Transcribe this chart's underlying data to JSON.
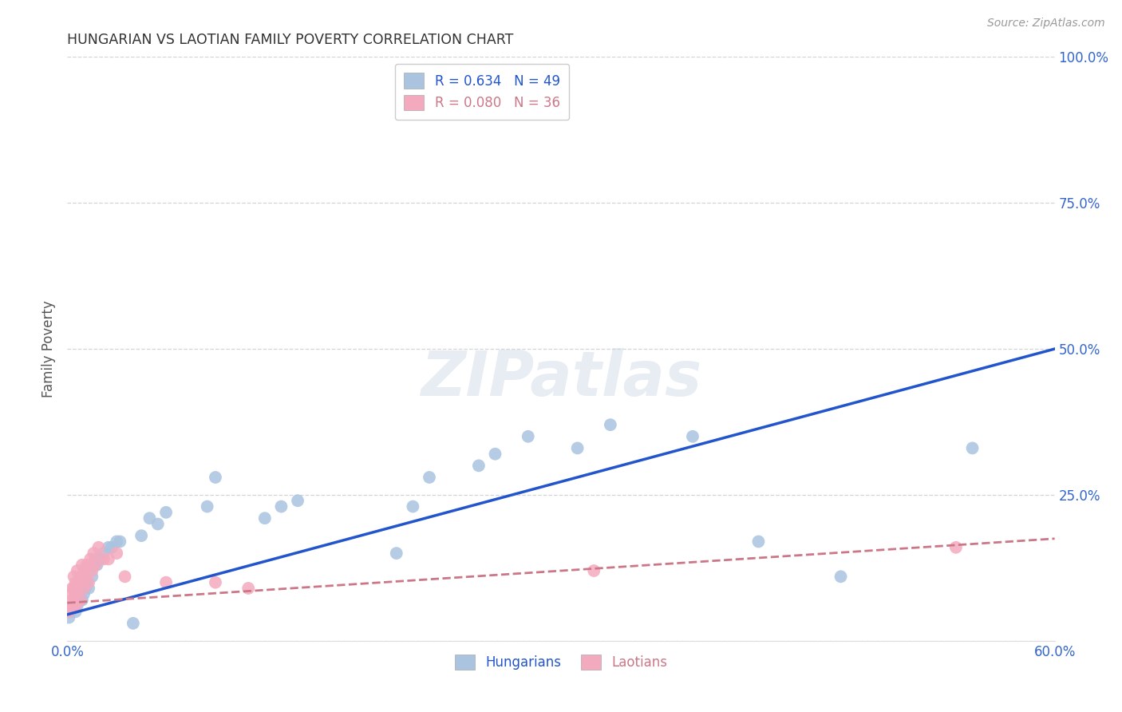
{
  "title": "HUNGARIAN VS LAOTIAN FAMILY POVERTY CORRELATION CHART",
  "source": "Source: ZipAtlas.com",
  "ylabel_label": "Family Poverty",
  "xlim": [
    0.0,
    0.6
  ],
  "ylim": [
    0.0,
    1.0
  ],
  "xticks": [
    0.0,
    0.1,
    0.2,
    0.3,
    0.4,
    0.5,
    0.6
  ],
  "xticklabels": [
    "0.0%",
    "",
    "",
    "",
    "",
    "",
    "60.0%"
  ],
  "yticks": [
    0.0,
    0.25,
    0.5,
    0.75,
    1.0
  ],
  "yticklabels": [
    "",
    "25.0%",
    "50.0%",
    "75.0%",
    "100.0%"
  ],
  "background_color": "#ffffff",
  "grid_color": "#d0d0d0",
  "hungarian_color": "#aac4e0",
  "laotian_color": "#f4aabe",
  "hungarian_line_color": "#2255cc",
  "laotian_line_color": "#cc7788",
  "legend_R_hungarian": "0.634",
  "legend_N_hungarian": "49",
  "legend_R_laotian": "0.080",
  "legend_N_laotian": "36",
  "watermark": "ZIPatlas",
  "hung_x": [
    0.001,
    0.002,
    0.003,
    0.004,
    0.005,
    0.005,
    0.006,
    0.007,
    0.007,
    0.008,
    0.008,
    0.009,
    0.01,
    0.01,
    0.011,
    0.012,
    0.013,
    0.015,
    0.016,
    0.017,
    0.018,
    0.02,
    0.022,
    0.025,
    0.027,
    0.03,
    0.032,
    0.04,
    0.045,
    0.05,
    0.055,
    0.06,
    0.085,
    0.09,
    0.12,
    0.13,
    0.14,
    0.2,
    0.21,
    0.22,
    0.25,
    0.26,
    0.28,
    0.31,
    0.33,
    0.38,
    0.42,
    0.47,
    0.55
  ],
  "hung_y": [
    0.04,
    0.05,
    0.06,
    0.06,
    0.05,
    0.07,
    0.06,
    0.08,
    0.07,
    0.07,
    0.09,
    0.07,
    0.08,
    0.1,
    0.09,
    0.1,
    0.09,
    0.11,
    0.13,
    0.14,
    0.13,
    0.14,
    0.15,
    0.16,
    0.16,
    0.17,
    0.17,
    0.03,
    0.18,
    0.21,
    0.2,
    0.22,
    0.23,
    0.28,
    0.21,
    0.23,
    0.24,
    0.15,
    0.23,
    0.28,
    0.3,
    0.32,
    0.35,
    0.33,
    0.37,
    0.35,
    0.17,
    0.11,
    0.33
  ],
  "laot_x": [
    0.001,
    0.002,
    0.002,
    0.003,
    0.003,
    0.004,
    0.004,
    0.004,
    0.005,
    0.005,
    0.005,
    0.006,
    0.006,
    0.007,
    0.008,
    0.008,
    0.009,
    0.01,
    0.01,
    0.011,
    0.012,
    0.013,
    0.014,
    0.015,
    0.016,
    0.017,
    0.019,
    0.022,
    0.025,
    0.03,
    0.035,
    0.06,
    0.09,
    0.11,
    0.32,
    0.54
  ],
  "laot_y": [
    0.05,
    0.06,
    0.08,
    0.07,
    0.09,
    0.06,
    0.09,
    0.11,
    0.06,
    0.08,
    0.1,
    0.09,
    0.12,
    0.1,
    0.11,
    0.07,
    0.13,
    0.09,
    0.12,
    0.11,
    0.13,
    0.1,
    0.14,
    0.12,
    0.15,
    0.13,
    0.16,
    0.14,
    0.14,
    0.15,
    0.11,
    0.1,
    0.1,
    0.09,
    0.12,
    0.16
  ]
}
